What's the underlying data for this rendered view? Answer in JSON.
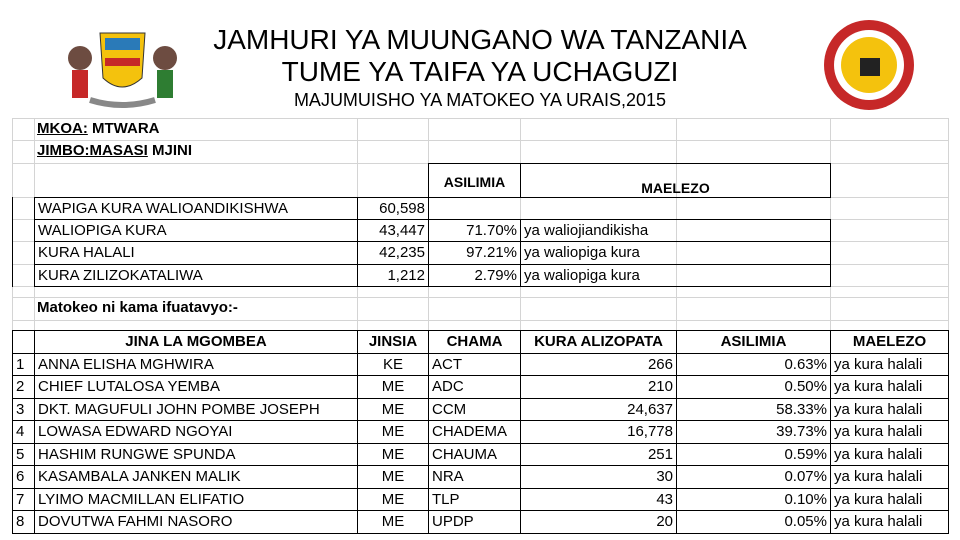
{
  "header": {
    "title": "JAMHURI YA MUUNGANO WA TANZANIA",
    "subtitle": "TUME YA TAIFA YA UCHAGUZI",
    "report": "MAJUMUISHO YA MATOKEO YA URAIS,2015"
  },
  "region": {
    "mkoa_label": "MKOA:",
    "mkoa": "MTWARA",
    "jimbo_label": "JIMBO:MASASI",
    "jimbo": "MJINI"
  },
  "summary": {
    "headers": [
      "ASILIMIA",
      "MAELEZO"
    ],
    "rows": [
      [
        "WAPIGA KURA WALIOANDIKISHWA",
        "60,598"
      ],
      [
        "WALIOPIGA KURA",
        "43,447",
        "71.70%",
        "ya waliojiandikisha"
      ],
      [
        "KURA HALALI",
        "42,235",
        "97.21%",
        "ya waliopiga kura"
      ],
      [
        "KURA ZILIZOKATALIWA",
        "1,212",
        "2.79%",
        "ya waliopiga kura"
      ]
    ]
  },
  "note": "Matokeo ni kama ifuatavyo:-",
  "results": {
    "headers": [
      "JINA LA MGOMBEA",
      "JINSIA",
      "CHAMA",
      "KURA ALIZOPATA",
      "ASILIMIA",
      "MAELEZO"
    ],
    "rows": [
      [
        "1",
        "ANNA ELISHA MGHWIRA",
        "KE",
        "ACT",
        "266",
        "0.63%",
        "ya kura halali"
      ],
      [
        "2",
        "CHIEF LUTALOSA YEMBA",
        "ME",
        "ADC",
        "210",
        "0.50%",
        "ya kura halali"
      ],
      [
        "3",
        "DKT. MAGUFULI JOHN POMBE JOSEPH",
        "ME",
        "CCM",
        "24,637",
        "58.33%",
        "ya kura halali"
      ],
      [
        "4",
        "LOWASA EDWARD NGOYAI",
        "ME",
        "CHADEMA",
        "16,778",
        "39.73%",
        "ya kura halali"
      ],
      [
        "5",
        "HASHIM RUNGWE SPUNDA",
        "ME",
        "CHAUMA",
        "251",
        "0.59%",
        "ya kura halali"
      ],
      [
        "6",
        "KASAMBALA JANKEN MALIK",
        "ME",
        "NRA",
        "30",
        "0.07%",
        "ya kura halali"
      ],
      [
        "7",
        "LYIMO MACMILLAN ELIFATIO",
        "ME",
        "TLP",
        "43",
        "0.10%",
        "ya kura halali"
      ],
      [
        "8",
        "DOVUTWA FAHMI NASORO",
        "ME",
        "UPDP",
        "20",
        "0.05%",
        "ya kura halali"
      ]
    ]
  }
}
